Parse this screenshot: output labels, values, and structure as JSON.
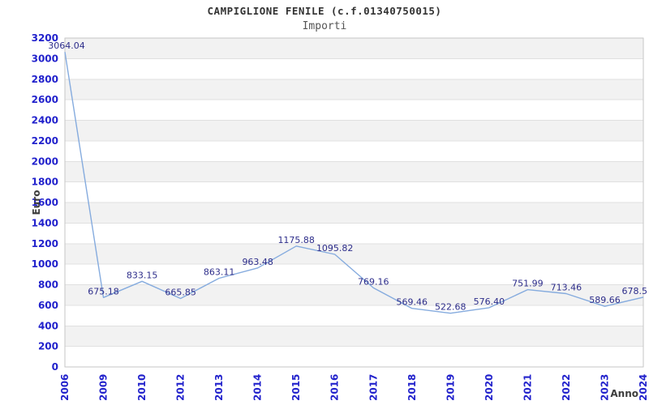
{
  "chart_data": {
    "type": "line",
    "title": "CAMPIGLIONE FENILE (c.f.01340750015)",
    "subtitle": "Importi",
    "x_axis_label": "Anno",
    "y_axis_label": "Euro",
    "categories": [
      "2006",
      "2009",
      "2010",
      "2012",
      "2013",
      "2014",
      "2015",
      "2016",
      "2017",
      "2018",
      "2019",
      "2020",
      "2021",
      "2022",
      "2023",
      "2024"
    ],
    "values": [
      3064.04,
      675.18,
      833.15,
      665.85,
      863.11,
      963.48,
      1175.88,
      1095.82,
      769.16,
      569.46,
      522.68,
      576.4,
      751.99,
      713.46,
      589.66,
      678.5
    ],
    "point_labels": [
      "3064.04",
      "675.18",
      "833.15",
      "665.85",
      "863.11",
      "963.48",
      "1175.88",
      "1095.82",
      "769.16",
      "569.46",
      "522.68",
      "576.40",
      "751.99",
      "713.46",
      "589.66",
      "678.5"
    ],
    "ylim": [
      0,
      3200
    ],
    "ytick_step": 200,
    "grid": true,
    "legend": false,
    "colors": {
      "line": "#85abde",
      "tick_label": "#2222cc",
      "data_label": "#2d2d8a",
      "band": "#f2f2f2",
      "gridline": "#e0e0e0",
      "border": "#c6c6c6",
      "title": "#333333",
      "subtitle": "#555555",
      "axis_title": "#3d3d3d",
      "background": "#ffffff"
    }
  }
}
